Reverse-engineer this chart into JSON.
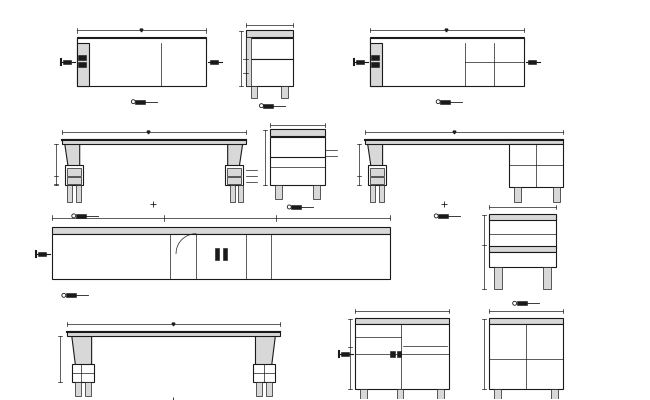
{
  "bg_color": "#ffffff",
  "line_color": "#1a1a1a",
  "fill_light": "#d8d8d8",
  "fill_dark": "#1a1a1a",
  "figsize": [
    6.5,
    4.0
  ],
  "dpi": 100,
  "drawings": {
    "row1": {
      "d1": {
        "ox": 75,
        "oy": 315,
        "tw": 130,
        "th": 48
      },
      "d2": {
        "ox": 245,
        "oy": 315,
        "tw": 48,
        "th": 55
      },
      "d3": {
        "ox": 370,
        "oy": 315,
        "tw": 155,
        "th": 48
      }
    },
    "row2": {
      "d4": {
        "ox": 60,
        "oy": 210,
        "tw": 185,
        "th": 50
      },
      "d5": {
        "ox": 270,
        "oy": 215,
        "tw": 55,
        "th": 55
      },
      "d6": {
        "ox": 365,
        "oy": 210,
        "tw": 200,
        "th": 50
      }
    },
    "row3": {
      "d7": {
        "ox": 50,
        "oy": 120,
        "tw": 340,
        "th": 52
      },
      "d8": {
        "ox": 490,
        "oy": 110,
        "tw": 68,
        "th": 75
      }
    },
    "row4": {
      "d9": {
        "ox": 65,
        "oy": 15,
        "tw": 215,
        "th": 52
      },
      "d10": {
        "ox": 355,
        "oy": 10,
        "tw": 95,
        "th": 70
      },
      "d11": {
        "ox": 490,
        "oy": 10,
        "tw": 75,
        "th": 70
      }
    }
  }
}
